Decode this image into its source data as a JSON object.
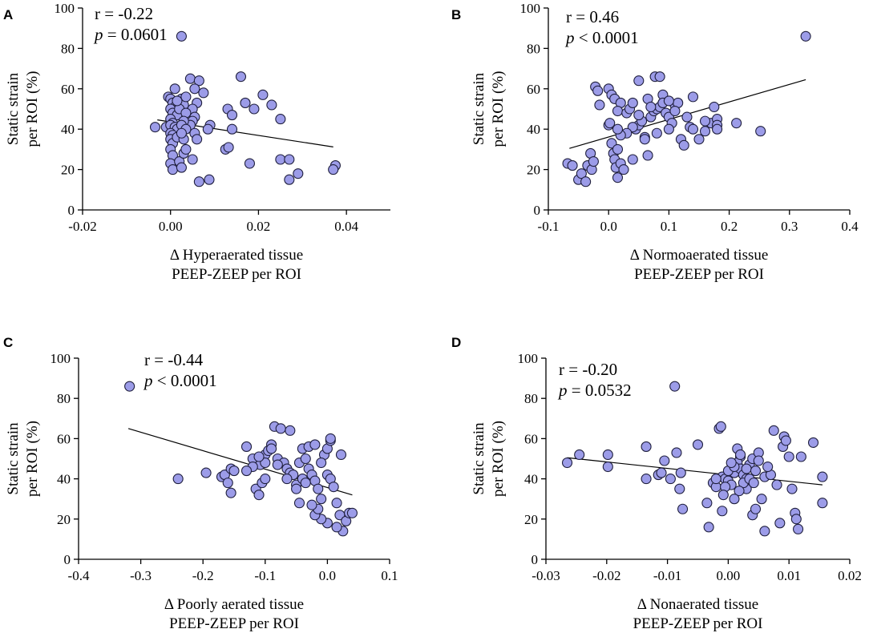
{
  "chart_data": [
    {
      "type": "scatter",
      "panel": "A",
      "xlabel": "Δ Hyperaerated tissue",
      "xlabel2": "PEEP-ZEEP per ROI",
      "ylabel": "Static strain",
      "ylabel2": "per ROI (%)",
      "xlim": [
        -0.02,
        0.05
      ],
      "ylim": [
        0,
        100
      ],
      "xticks": [
        -0.02,
        0.0,
        0.02,
        0.04
      ],
      "xtick_labels": [
        "-0.02",
        "0.00",
        "0.02",
        "0.04"
      ],
      "yticks": [
        0,
        20,
        40,
        60,
        80,
        100
      ],
      "ytick_labels": [
        "0",
        "20",
        "40",
        "60",
        "80",
        "100"
      ],
      "r_text": "r = -0.22",
      "p_symbol": "p",
      "p_rest": " = 0.0601",
      "fit_line": {
        "x": [
          -0.003,
          0.037
        ],
        "y": [
          44.6,
          31.2
        ]
      },
      "points": [
        [
          0.0025,
          86
        ],
        [
          0.0045,
          65
        ],
        [
          0.0065,
          64
        ],
        [
          0.0055,
          60
        ],
        [
          0.0075,
          58
        ],
        [
          0.016,
          66
        ],
        [
          0.021,
          57
        ],
        [
          0.019,
          50
        ],
        [
          0.017,
          53
        ],
        [
          0.023,
          52
        ],
        [
          0.025,
          45
        ],
        [
          0.013,
          50
        ],
        [
          0.014,
          47
        ],
        [
          0.014,
          40
        ],
        [
          0.009,
          42
        ],
        [
          0.0085,
          40
        ],
        [
          0.006,
          53
        ],
        [
          0.005,
          50
        ],
        [
          0.0055,
          46
        ],
        [
          0.005,
          44
        ],
        [
          0.0045,
          42
        ],
        [
          0.0055,
          38
        ],
        [
          0.006,
          35
        ],
        [
          0.005,
          25
        ],
        [
          0.0065,
          14
        ],
        [
          0.0088,
          15
        ],
        [
          0.0125,
          30
        ],
        [
          0.018,
          23
        ],
        [
          0.025,
          25
        ],
        [
          0.027,
          25
        ],
        [
          0.027,
          15
        ],
        [
          0.029,
          18
        ],
        [
          0.0375,
          22
        ],
        [
          0.037,
          20
        ],
        [
          0.0132,
          31
        ],
        [
          -0.0035,
          41
        ],
        [
          -0.001,
          41
        ],
        [
          -0.0005,
          56
        ],
        [
          0.0,
          55
        ],
        [
          0.0005,
          53
        ],
        [
          0.001,
          51
        ],
        [
          0.0,
          50
        ],
        [
          0.0005,
          48
        ],
        [
          0.0015,
          47
        ],
        [
          0.0,
          45
        ],
        [
          0.0005,
          43
        ],
        [
          0.0,
          42
        ],
        [
          0.001,
          41
        ],
        [
          0.0015,
          40
        ],
        [
          0.0,
          38
        ],
        [
          0.0005,
          37
        ],
        [
          0.0,
          35
        ],
        [
          0.0005,
          33
        ],
        [
          0.0,
          30
        ],
        [
          0.0005,
          27
        ],
        [
          0.0,
          23
        ],
        [
          0.0005,
          20
        ],
        [
          0.002,
          24
        ],
        [
          0.0025,
          21
        ],
        [
          0.003,
          28
        ],
        [
          0.0025,
          55
        ],
        [
          0.003,
          52
        ],
        [
          0.002,
          50
        ],
        [
          0.0035,
          48
        ],
        [
          0.003,
          44
        ],
        [
          0.0025,
          42
        ],
        [
          0.0035,
          40
        ],
        [
          0.0015,
          36
        ],
        [
          0.003,
          35
        ],
        [
          0.0025,
          38
        ],
        [
          0.0035,
          56
        ],
        [
          0.0035,
          30
        ],
        [
          0.001,
          60
        ],
        [
          0.0015,
          54
        ]
      ]
    },
    {
      "type": "scatter",
      "panel": "B",
      "xlabel": "Δ Normoaerated tissue",
      "xlabel2": "PEEP-ZEEP per ROI",
      "ylabel": "Static strain",
      "ylabel2": "per ROI (%)",
      "xlim": [
        -0.1,
        0.4
      ],
      "ylim": [
        0,
        100
      ],
      "xticks": [
        -0.1,
        0.0,
        0.1,
        0.2,
        0.3,
        0.4
      ],
      "xtick_labels": [
        "-0.1",
        "0.0",
        "0.1",
        "0.2",
        "0.3",
        "0.4"
      ],
      "yticks": [
        0,
        20,
        40,
        60,
        80,
        100
      ],
      "ytick_labels": [
        "0",
        "20",
        "40",
        "60",
        "80",
        "100"
      ],
      "r_text": "r = 0.46",
      "p_symbol": "p",
      "p_rest": " < 0.0001",
      "fit_line": {
        "x": [
          -0.065,
          0.327
        ],
        "y": [
          30.5,
          64.5
        ]
      },
      "points": [
        [
          0.327,
          86
        ],
        [
          0.077,
          66
        ],
        [
          0.085,
          66
        ],
        [
          0.05,
          64
        ],
        [
          0.14,
          56
        ],
        [
          0.252,
          39
        ],
        [
          0.212,
          43
        ],
        [
          -0.068,
          23
        ],
        [
          -0.06,
          22
        ],
        [
          -0.05,
          15
        ],
        [
          -0.045,
          18
        ],
        [
          -0.038,
          14
        ],
        [
          -0.035,
          22
        ],
        [
          -0.03,
          28
        ],
        [
          -0.028,
          20
        ],
        [
          -0.025,
          24
        ],
        [
          -0.022,
          61
        ],
        [
          -0.018,
          59
        ],
        [
          -0.015,
          52
        ],
        [
          0.0,
          60
        ],
        [
          0.005,
          57
        ],
        [
          0.01,
          55
        ],
        [
          0.02,
          53
        ],
        [
          0.015,
          49
        ],
        [
          0.0,
          42
        ],
        [
          0.002,
          43
        ],
        [
          0.005,
          33
        ],
        [
          0.008,
          28
        ],
        [
          0.01,
          25
        ],
        [
          0.012,
          21
        ],
        [
          0.015,
          16
        ],
        [
          0.02,
          23
        ],
        [
          0.025,
          20
        ],
        [
          0.03,
          48
        ],
        [
          0.035,
          50
        ],
        [
          0.04,
          53
        ],
        [
          0.045,
          40
        ],
        [
          0.05,
          42
        ],
        [
          0.055,
          44
        ],
        [
          0.06,
          36
        ],
        [
          0.065,
          55
        ],
        [
          0.07,
          46
        ],
        [
          0.075,
          49
        ],
        [
          0.08,
          50
        ],
        [
          0.085,
          51
        ],
        [
          0.09,
          57
        ],
        [
          0.095,
          48
        ],
        [
          0.1,
          46
        ],
        [
          0.105,
          43
        ],
        [
          0.11,
          52
        ],
        [
          0.115,
          53
        ],
        [
          0.12,
          35
        ],
        [
          0.125,
          32
        ],
        [
          0.13,
          46
        ],
        [
          0.135,
          41
        ],
        [
          0.14,
          40
        ],
        [
          0.15,
          35
        ],
        [
          0.16,
          39
        ],
        [
          0.17,
          43
        ],
        [
          0.175,
          51
        ],
        [
          0.18,
          45
        ],
        [
          0.18,
          42
        ],
        [
          0.18,
          40
        ],
        [
          0.16,
          44
        ],
        [
          0.1,
          40
        ],
        [
          0.08,
          38
        ],
        [
          0.06,
          35
        ],
        [
          0.04,
          41
        ],
        [
          0.03,
          38
        ],
        [
          0.02,
          37
        ],
        [
          0.015,
          40
        ],
        [
          0.05,
          47
        ],
        [
          0.07,
          51
        ],
        [
          0.09,
          53
        ],
        [
          0.11,
          49
        ],
        [
          0.1,
          54
        ],
        [
          0.065,
          27
        ],
        [
          0.04,
          25
        ],
        [
          0.015,
          30
        ]
      ]
    },
    {
      "type": "scatter",
      "panel": "C",
      "xlabel": "Δ Poorly aerated tissue",
      "xlabel2": "PEEP-ZEEP per ROI",
      "ylabel": "Static strain",
      "ylabel2": "per ROI (%)",
      "xlim": [
        -0.4,
        0.1
      ],
      "ylim": [
        0,
        100
      ],
      "xticks": [
        -0.4,
        -0.3,
        -0.2,
        -0.1,
        0.0,
        0.1
      ],
      "xtick_labels": [
        "-0.4",
        "-0.3",
        "-0.2",
        "-0.1",
        "0.0",
        "0.1"
      ],
      "yticks": [
        0,
        20,
        40,
        60,
        80,
        100
      ],
      "ytick_labels": [
        "0",
        "20",
        "40",
        "60",
        "80",
        "100"
      ],
      "r_text": "r = -0.44",
      "p_symbol": "p",
      "p_rest": " < 0.0001",
      "fit_line": {
        "x": [
          -0.32,
          0.04
        ],
        "y": [
          65.0,
          32.0
        ]
      },
      "points": [
        [
          -0.318,
          86
        ],
        [
          -0.24,
          40
        ],
        [
          -0.195,
          43
        ],
        [
          -0.17,
          41
        ],
        [
          -0.165,
          42
        ],
        [
          -0.16,
          38
        ],
        [
          -0.155,
          45
        ],
        [
          -0.15,
          44
        ],
        [
          -0.155,
          33
        ],
        [
          -0.13,
          56
        ],
        [
          -0.12,
          50
        ],
        [
          -0.115,
          35
        ],
        [
          -0.11,
          32
        ],
        [
          -0.105,
          38
        ],
        [
          -0.1,
          40
        ],
        [
          -0.108,
          47
        ],
        [
          -0.1,
          52
        ],
        [
          -0.095,
          54
        ],
        [
          -0.09,
          57
        ],
        [
          -0.085,
          66
        ],
        [
          -0.075,
          65
        ],
        [
          -0.08,
          50
        ],
        [
          -0.07,
          48
        ],
        [
          -0.065,
          45
        ],
        [
          -0.06,
          43
        ],
        [
          -0.055,
          42
        ],
        [
          -0.05,
          37
        ],
        [
          -0.045,
          48
        ],
        [
          -0.04,
          55
        ],
        [
          -0.035,
          50
        ],
        [
          -0.03,
          45
        ],
        [
          -0.025,
          42
        ],
        [
          -0.02,
          39
        ],
        [
          -0.015,
          35
        ],
        [
          -0.01,
          30
        ],
        [
          -0.005,
          52
        ],
        [
          0.0,
          55
        ],
        [
          0.005,
          59
        ],
        [
          0.0,
          42
        ],
        [
          0.005,
          40
        ],
        [
          0.01,
          36
        ],
        [
          0.015,
          28
        ],
        [
          0.02,
          22
        ],
        [
          0.025,
          14
        ],
        [
          0.03,
          19
        ],
        [
          0.035,
          23
        ],
        [
          0.04,
          23
        ],
        [
          0.0,
          18
        ],
        [
          -0.01,
          20
        ],
        [
          -0.02,
          22
        ],
        [
          -0.015,
          25
        ],
        [
          -0.025,
          27
        ],
        [
          -0.03,
          56
        ],
        [
          -0.04,
          40
        ],
        [
          -0.05,
          35
        ],
        [
          -0.06,
          64
        ],
        [
          -0.08,
          47
        ],
        [
          -0.09,
          55
        ],
        [
          -0.1,
          48
        ],
        [
          -0.11,
          51
        ],
        [
          -0.12,
          46
        ],
        [
          -0.13,
          44
        ],
        [
          -0.02,
          57
        ],
        [
          -0.01,
          48
        ],
        [
          0.005,
          60
        ],
        [
          -0.045,
          28
        ],
        [
          -0.035,
          38
        ],
        [
          -0.065,
          40
        ],
        [
          0.022,
          52
        ],
        [
          0.015,
          16
        ]
      ]
    },
    {
      "type": "scatter",
      "panel": "D",
      "xlabel": "Δ Nonaerated tissue",
      "xlabel2": "PEEP-ZEEP per ROI",
      "ylabel": "Static strain",
      "ylabel2": "per ROI (%)",
      "xlim": [
        -0.03,
        0.02
      ],
      "ylim": [
        0,
        100
      ],
      "xticks": [
        -0.03,
        -0.02,
        -0.01,
        0.0,
        0.01,
        0.02
      ],
      "xtick_labels": [
        "-0.03",
        "-0.02",
        "-0.01",
        "0.00",
        "0.01",
        "0.02"
      ],
      "yticks": [
        0,
        20,
        40,
        60,
        80,
        100
      ],
      "ytick_labels": [
        "0",
        "20",
        "40",
        "60",
        "80",
        "100"
      ],
      "r_text": "r = -0.20",
      "p_symbol": "p",
      "p_rest": " = 0.0532",
      "fit_line": {
        "x": [
          -0.0265,
          0.0155
        ],
        "y": [
          50.5,
          37.0
        ]
      },
      "points": [
        [
          -0.0088,
          86
        ],
        [
          -0.0265,
          48
        ],
        [
          -0.0245,
          52
        ],
        [
          -0.0198,
          52
        ],
        [
          -0.0198,
          46
        ],
        [
          -0.0135,
          56
        ],
        [
          -0.0135,
          40
        ],
        [
          -0.0115,
          42
        ],
        [
          -0.011,
          43
        ],
        [
          -0.0105,
          49
        ],
        [
          -0.0095,
          40
        ],
        [
          -0.0085,
          53
        ],
        [
          -0.008,
          35
        ],
        [
          -0.0078,
          43
        ],
        [
          -0.0075,
          25
        ],
        [
          -0.005,
          57
        ],
        [
          -0.0035,
          28
        ],
        [
          -0.0032,
          16
        ],
        [
          -0.0025,
          38
        ],
        [
          -0.002,
          36
        ],
        [
          -0.0015,
          65
        ],
        [
          -0.0012,
          66
        ],
        [
          -0.001,
          41
        ],
        [
          -0.0005,
          40
        ],
        [
          0.0,
          39
        ],
        [
          0.0005,
          37
        ],
        [
          0.001,
          43
        ],
        [
          0.0015,
          55
        ],
        [
          0.002,
          51
        ],
        [
          0.0015,
          48
        ],
        [
          0.002,
          45
        ],
        [
          0.0025,
          42
        ],
        [
          0.003,
          40
        ],
        [
          0.003,
          35
        ],
        [
          0.0035,
          47
        ],
        [
          0.004,
          50
        ],
        [
          0.004,
          22
        ],
        [
          0.0045,
          25
        ],
        [
          0.005,
          53
        ],
        [
          0.005,
          49
        ],
        [
          0.0055,
          30
        ],
        [
          0.006,
          41
        ],
        [
          0.006,
          14
        ],
        [
          0.007,
          42
        ],
        [
          0.0075,
          64
        ],
        [
          0.008,
          37
        ],
        [
          0.0085,
          18
        ],
        [
          0.009,
          56
        ],
        [
          0.0092,
          61
        ],
        [
          0.0095,
          59
        ],
        [
          0.01,
          51
        ],
        [
          0.0105,
          35
        ],
        [
          0.011,
          23
        ],
        [
          0.0112,
          20
        ],
        [
          0.0115,
          15
        ],
        [
          0.012,
          51
        ],
        [
          0.014,
          58
        ],
        [
          0.0155,
          28
        ],
        [
          0.0155,
          41
        ],
        [
          -0.001,
          24
        ],
        [
          0.0,
          44
        ],
        [
          0.001,
          46
        ],
        [
          0.002,
          52
        ],
        [
          0.003,
          45
        ],
        [
          -0.0005,
          36
        ],
        [
          0.0005,
          48
        ],
        [
          0.0045,
          44
        ],
        [
          0.0065,
          46
        ],
        [
          -0.002,
          40
        ],
        [
          0.0025,
          38
        ],
        [
          0.0035,
          40
        ],
        [
          0.0018,
          34
        ],
        [
          0.001,
          30
        ],
        [
          -0.0008,
          32
        ],
        [
          0.0042,
          38
        ]
      ]
    }
  ]
}
